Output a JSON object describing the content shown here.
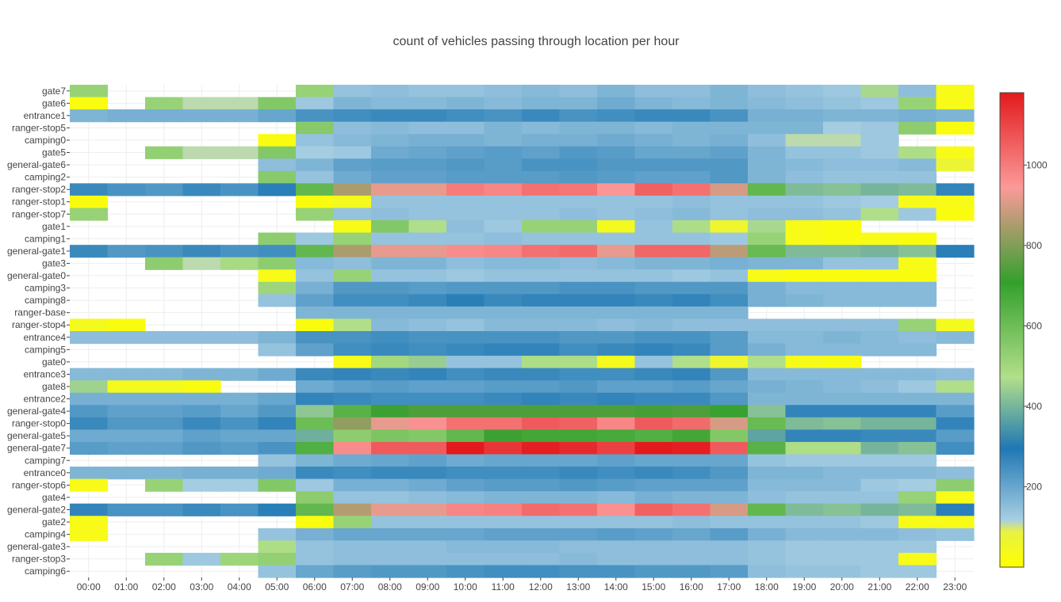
{
  "chart_data": {
    "type": "heatmap",
    "title": "count of vehicles passing through location per hour",
    "xlabel": "",
    "ylabel": "",
    "x": [
      "00:00",
      "01:00",
      "02:00",
      "03:00",
      "04:00",
      "05:00",
      "06:00",
      "07:00",
      "08:00",
      "09:00",
      "10:00",
      "11:00",
      "12:00",
      "13:00",
      "14:00",
      "15:00",
      "16:00",
      "17:00",
      "18:00",
      "19:00",
      "20:00",
      "21:00",
      "22:00",
      "23:00"
    ],
    "y": [
      "gate7",
      "gate6",
      "entrance1",
      "ranger-stop5",
      "camping0",
      "gate5",
      "general-gate6",
      "camping2",
      "ranger-stop2",
      "ranger-stop1",
      "ranger-stop7",
      "gate1",
      "camping1",
      "general-gate1",
      "gate3",
      "general-gate0",
      "camping3",
      "camping8",
      "ranger-base",
      "ranger-stop4",
      "entrance4",
      "camping5",
      "gate0",
      "entrance3",
      "gate8",
      "entrance2",
      "general-gate4",
      "ranger-stop0",
      "general-gate5",
      "general-gate7",
      "camping7",
      "entrance0",
      "ranger-stop6",
      "gate4",
      "general-gate2",
      "gate2",
      "camping4",
      "general-gate3",
      "ranger-stop3",
      "camping6"
    ],
    "z": [
      [
        520,
        null,
        null,
        null,
        null,
        null,
        520,
        140,
        150,
        140,
        140,
        150,
        160,
        150,
        170,
        150,
        150,
        170,
        150,
        140,
        130,
        460,
        150,
        30
      ],
      [
        20,
        null,
        520,
        110,
        110,
        560,
        130,
        170,
        160,
        160,
        170,
        160,
        170,
        170,
        190,
        170,
        160,
        170,
        160,
        150,
        140,
        130,
        520,
        30
      ],
      [
        170,
        180,
        180,
        180,
        180,
        200,
        240,
        250,
        260,
        260,
        250,
        240,
        260,
        240,
        250,
        260,
        260,
        240,
        180,
        180,
        170,
        170,
        180,
        170
      ],
      [
        null,
        null,
        null,
        null,
        null,
        null,
        550,
        150,
        160,
        150,
        150,
        170,
        160,
        170,
        170,
        160,
        170,
        170,
        170,
        170,
        120,
        130,
        540,
        20
      ],
      [
        null,
        null,
        null,
        null,
        null,
        20,
        140,
        160,
        170,
        180,
        180,
        170,
        180,
        180,
        190,
        180,
        170,
        180,
        150,
        110,
        110,
        130,
        null,
        null
      ],
      [
        null,
        null,
        530,
        110,
        110,
        560,
        120,
        130,
        190,
        200,
        210,
        220,
        210,
        230,
        220,
        200,
        200,
        210,
        170,
        140,
        140,
        130,
        480,
        30
      ],
      [
        null,
        null,
        null,
        null,
        null,
        150,
        170,
        210,
        220,
        220,
        230,
        220,
        240,
        240,
        230,
        230,
        230,
        230,
        170,
        160,
        150,
        150,
        160,
        70
      ],
      [
        null,
        null,
        null,
        null,
        null,
        550,
        140,
        190,
        210,
        210,
        220,
        220,
        220,
        230,
        220,
        210,
        210,
        230,
        170,
        150,
        140,
        140,
        140,
        null
      ],
      [
        260,
        240,
        230,
        260,
        240,
        280,
        620,
        850,
        920,
        920,
        1000,
        980,
        1020,
        1010,
        950,
        1050,
        1020,
        900,
        620,
        410,
        420,
        400,
        410,
        270
      ],
      [
        20,
        null,
        null,
        null,
        null,
        null,
        20,
        40,
        140,
        140,
        140,
        140,
        140,
        140,
        140,
        140,
        150,
        140,
        140,
        140,
        130,
        120,
        30,
        30
      ],
      [
        520,
        null,
        null,
        null,
        null,
        null,
        520,
        140,
        150,
        140,
        140,
        140,
        140,
        150,
        140,
        150,
        160,
        140,
        150,
        150,
        140,
        470,
        130,
        20
      ],
      [
        null,
        null,
        null,
        null,
        null,
        null,
        null,
        30,
        560,
        470,
        150,
        130,
        520,
        520,
        40,
        140,
        480,
        60,
        460,
        30,
        20,
        null,
        null,
        null
      ],
      [
        null,
        null,
        null,
        null,
        null,
        540,
        130,
        520,
        140,
        140,
        140,
        150,
        140,
        140,
        140,
        140,
        140,
        130,
        520,
        30,
        20,
        30,
        20,
        null
      ],
      [
        260,
        230,
        240,
        260,
        240,
        250,
        620,
        850,
        920,
        920,
        970,
        980,
        1020,
        1030,
        920,
        1040,
        1040,
        870,
        610,
        410,
        410,
        400,
        420,
        280
      ],
      [
        null,
        null,
        540,
        110,
        490,
        540,
        160,
        150,
        170,
        170,
        150,
        160,
        160,
        150,
        160,
        170,
        170,
        180,
        170,
        170,
        140,
        140,
        30,
        null
      ],
      [
        null,
        null,
        null,
        null,
        null,
        30,
        140,
        520,
        140,
        140,
        130,
        140,
        140,
        140,
        140,
        140,
        130,
        140,
        30,
        20,
        20,
        20,
        20,
        null
      ],
      [
        null,
        null,
        null,
        null,
        null,
        510,
        180,
        230,
        230,
        220,
        230,
        230,
        230,
        240,
        240,
        230,
        230,
        230,
        180,
        160,
        160,
        160,
        160,
        null
      ],
      [
        null,
        null,
        null,
        null,
        null,
        140,
        210,
        250,
        250,
        260,
        280,
        260,
        270,
        270,
        270,
        260,
        270,
        250,
        180,
        170,
        160,
        160,
        160,
        null
      ],
      [
        null,
        null,
        null,
        null,
        null,
        null,
        170,
        170,
        170,
        170,
        170,
        170,
        170,
        170,
        170,
        170,
        170,
        170,
        null,
        null,
        null,
        null,
        null,
        null
      ],
      [
        40,
        20,
        null,
        null,
        null,
        null,
        20,
        470,
        160,
        150,
        140,
        160,
        160,
        160,
        150,
        160,
        150,
        150,
        150,
        150,
        150,
        150,
        520,
        40
      ],
      [
        150,
        150,
        150,
        150,
        150,
        170,
        240,
        240,
        250,
        240,
        240,
        240,
        240,
        230,
        230,
        240,
        240,
        220,
        160,
        160,
        170,
        160,
        150,
        160
      ],
      [
        null,
        null,
        null,
        null,
        null,
        140,
        210,
        250,
        260,
        250,
        260,
        270,
        270,
        250,
        260,
        270,
        260,
        220,
        180,
        160,
        160,
        160,
        160,
        null
      ],
      [
        null,
        null,
        null,
        null,
        null,
        null,
        null,
        30,
        500,
        440,
        140,
        140,
        480,
        480,
        40,
        140,
        470,
        60,
        470,
        30,
        20,
        null,
        null,
        null
      ],
      [
        160,
        160,
        160,
        170,
        170,
        190,
        260,
        270,
        260,
        270,
        250,
        260,
        260,
        250,
        250,
        260,
        270,
        230,
        160,
        160,
        160,
        160,
        160,
        150
      ],
      [
        450,
        40,
        40,
        20,
        null,
        null,
        190,
        210,
        220,
        210,
        210,
        220,
        220,
        230,
        210,
        210,
        220,
        200,
        180,
        170,
        160,
        150,
        130,
        470
      ],
      [
        180,
        180,
        180,
        180,
        180,
        200,
        270,
        260,
        250,
        250,
        250,
        260,
        270,
        260,
        270,
        260,
        260,
        230,
        170,
        170,
        170,
        170,
        170,
        170
      ],
      [
        230,
        210,
        210,
        220,
        200,
        230,
        430,
        640,
        720,
        740,
        740,
        740,
        740,
        740,
        740,
        730,
        740,
        700,
        420,
        270,
        270,
        270,
        270,
        220
      ],
      [
        260,
        230,
        230,
        260,
        240,
        270,
        600,
        820,
        920,
        960,
        1020,
        1020,
        1060,
        1050,
        980,
        1060,
        1030,
        900,
        610,
        410,
        420,
        400,
        400,
        270
      ],
      [
        190,
        190,
        190,
        210,
        200,
        200,
        390,
        540,
        570,
        560,
        620,
        720,
        680,
        680,
        670,
        650,
        680,
        560,
        370,
        270,
        270,
        260,
        260,
        220
      ],
      [
        220,
        210,
        210,
        230,
        220,
        240,
        650,
        970,
        1060,
        1060,
        1180,
        1130,
        1170,
        1150,
        1110,
        1180,
        1170,
        1060,
        640,
        480,
        480,
        400,
        420,
        250
      ],
      [
        null,
        null,
        null,
        null,
        null,
        140,
        170,
        190,
        200,
        210,
        190,
        200,
        200,
        200,
        210,
        200,
        200,
        200,
        140,
        130,
        130,
        130,
        130,
        null
      ],
      [
        170,
        170,
        170,
        180,
        180,
        190,
        260,
        250,
        260,
        260,
        250,
        250,
        250,
        260,
        250,
        260,
        250,
        230,
        170,
        170,
        160,
        160,
        160,
        150
      ],
      [
        30,
        null,
        520,
        120,
        120,
        560,
        130,
        180,
        180,
        190,
        210,
        220,
        220,
        230,
        220,
        210,
        210,
        210,
        160,
        160,
        160,
        130,
        120,
        540
      ],
      [
        null,
        null,
        null,
        null,
        null,
        null,
        540,
        140,
        140,
        150,
        160,
        170,
        170,
        170,
        160,
        180,
        170,
        170,
        150,
        140,
        140,
        140,
        520,
        30
      ],
      [
        270,
        240,
        240,
        260,
        240,
        280,
        620,
        860,
        920,
        920,
        980,
        990,
        1030,
        1020,
        960,
        1050,
        1020,
        900,
        620,
        410,
        420,
        400,
        410,
        280
      ],
      [
        30,
        null,
        null,
        null,
        null,
        null,
        20,
        520,
        140,
        140,
        140,
        140,
        140,
        140,
        140,
        140,
        150,
        140,
        140,
        140,
        140,
        130,
        30,
        30
      ],
      [
        30,
        null,
        null,
        null,
        null,
        140,
        180,
        200,
        200,
        200,
        200,
        210,
        210,
        210,
        220,
        210,
        200,
        220,
        180,
        160,
        160,
        160,
        150,
        140
      ],
      [
        null,
        null,
        null,
        null,
        null,
        480,
        140,
        150,
        150,
        150,
        160,
        160,
        160,
        150,
        150,
        150,
        150,
        150,
        140,
        130,
        130,
        130,
        130,
        null
      ],
      [
        null,
        null,
        520,
        130,
        510,
        530,
        140,
        150,
        150,
        150,
        150,
        150,
        150,
        160,
        150,
        150,
        150,
        150,
        140,
        130,
        130,
        130,
        30,
        null
      ],
      [
        null,
        null,
        null,
        null,
        null,
        140,
        200,
        220,
        230,
        230,
        240,
        250,
        250,
        240,
        240,
        230,
        230,
        220,
        150,
        140,
        140,
        130,
        130,
        null
      ]
    ],
    "zmin": 0,
    "zmax": 1180,
    "colorscale": [
      [
        0,
        "#ffff00"
      ],
      [
        0.08,
        "#e6f147"
      ],
      [
        0.1,
        "#a6cee3"
      ],
      [
        0.25,
        "#1f78b4"
      ],
      [
        0.4,
        "#b2df8a"
      ],
      [
        0.6,
        "#33a02c"
      ],
      [
        0.8,
        "#fb9a99"
      ],
      [
        1,
        "#e31a1c"
      ]
    ],
    "colorbar_ticks": [
      200,
      400,
      600,
      800,
      1000
    ],
    "grid": true,
    "legend": "colorbar-right"
  }
}
